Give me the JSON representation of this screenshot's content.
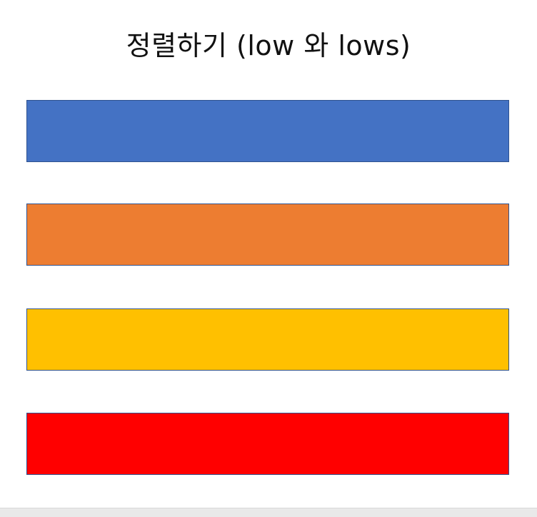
{
  "slide": {
    "title": "정렬하기 (low 와 lows)"
  },
  "bars": [
    {
      "color": "#4472C4"
    },
    {
      "color": "#ED7D31"
    },
    {
      "color": "#FFC000"
    },
    {
      "color": "#FF0000"
    }
  ]
}
